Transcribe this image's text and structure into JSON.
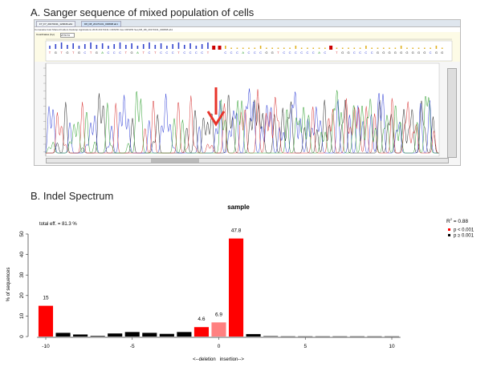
{
  "panel_a": {
    "title": "A.  Sanger sequence of mixed population of cells",
    "viewer": {
      "tabs": [
        "F7_F7_20170131_120046.ab1",
        "D8_D8_20170131_000808.ab1"
      ],
      "path": "Comanatie fusd Shared Folders Desktop Applications 2016 20170131 CRISPR Cas CRISPR Seq D8_D8_20170131_000808.ab1",
      "coordinate_label": "Coordinates (b.p)",
      "coordinate_value": "2770.74",
      "sequence": "TGTGTGCTGACCCTGATCTCCCTCCCCTNNCCCACCCGGTCCCCCCACNTGGCCCCGGGGGGGGGCGG",
      "arrow_color": "#e8332a"
    }
  },
  "panel_b": {
    "title": "B.  Indel Spectrum"
  },
  "chart_data": {
    "type": "bar",
    "title": "sample",
    "annotation": "total eff. = 81.3 %",
    "r2_label": "R",
    "r2_sup": "2",
    "r2_value": " = 0.88",
    "xlabel": "<--deletion   insertion-->",
    "ylabel": "% of sequences",
    "xlim": [
      -10.5,
      10.5
    ],
    "ylim": [
      0,
      50
    ],
    "xticks": [
      -10,
      -5,
      0,
      5,
      10
    ],
    "yticks": [
      0,
      10,
      20,
      30,
      40,
      50
    ],
    "x": [
      -10,
      -9,
      -8,
      -7,
      -6,
      -5,
      -4,
      -3,
      -2,
      -1,
      0,
      1,
      2,
      3,
      4,
      5,
      6,
      7,
      8,
      9,
      10
    ],
    "values": [
      15,
      1.8,
      1.0,
      0.3,
      1.5,
      2.2,
      1.8,
      1.3,
      2.2,
      4.6,
      6.9,
      47.8,
      1.2,
      0.2,
      0.1,
      0.1,
      0.1,
      0.1,
      0.1,
      0.1,
      0.1
    ],
    "significance": [
      "sig",
      "ns",
      "ns",
      "ns",
      "ns",
      "ns",
      "ns",
      "ns",
      "ns",
      "sig",
      "wt",
      "sig",
      "ns",
      "ns",
      "ns",
      "ns",
      "ns",
      "ns",
      "ns",
      "ns",
      "ns"
    ],
    "data_labels": {
      "-10": "15",
      "-1": "4.6",
      "0": "6.9",
      "1": "47.8"
    },
    "legend": [
      {
        "label": "p < 0.001",
        "color": "#ff0000"
      },
      {
        "label": "p ≥ 0.001",
        "color": "#000000"
      }
    ],
    "colors": {
      "sig": "#ff0000",
      "ns": "#000000",
      "wt": "#ff8080"
    },
    "legend_position": "top-right",
    "grid": false
  }
}
